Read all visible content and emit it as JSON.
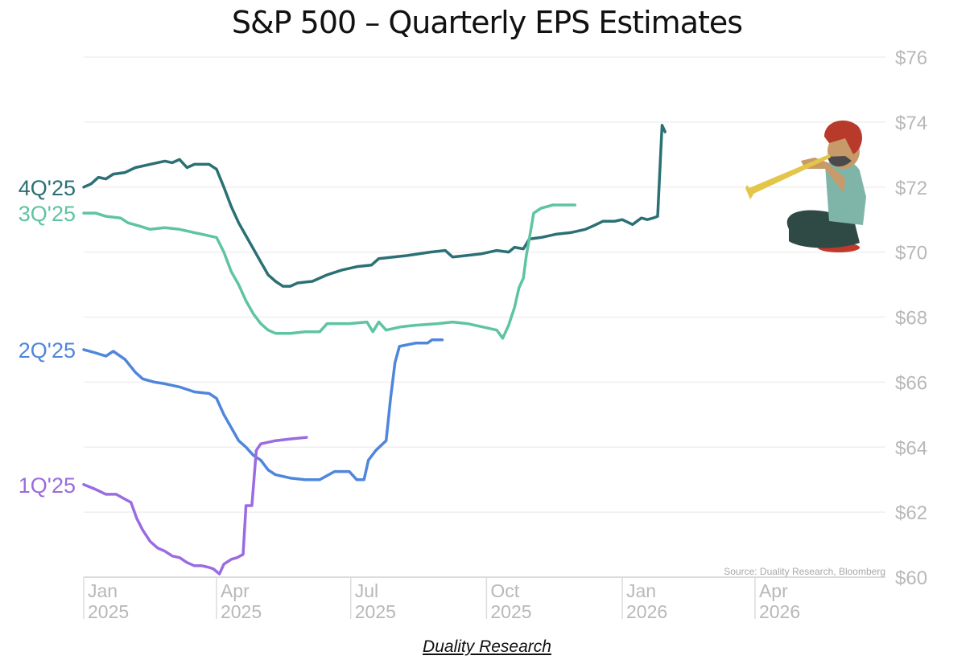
{
  "title": "S&P 500 – Quarterly EPS Estimates",
  "footer": "Duality Research",
  "source": "Source: Duality Research, Bloomberg",
  "chart_data": {
    "type": "line",
    "title": "S&P 500 – Quarterly EPS Estimates",
    "xlabel": "",
    "ylabel": "",
    "x_unit": "days since Jan 1 2025",
    "xlim": [
      0,
      455
    ],
    "ylim": [
      60,
      76
    ],
    "y_ticks": [
      60,
      62,
      64,
      66,
      68,
      70,
      72,
      74,
      76
    ],
    "y_tick_labels": [
      "$60",
      "$62",
      "$64",
      "$66",
      "$68",
      "$70",
      "$72",
      "$74",
      "$76"
    ],
    "x_ticks": [
      {
        "day": 0,
        "month": "Jan",
        "year": "2025"
      },
      {
        "day": 90,
        "month": "Apr",
        "year": "2025"
      },
      {
        "day": 181,
        "month": "Jul",
        "year": "2025"
      },
      {
        "day": 273,
        "month": "Oct",
        "year": "2025"
      },
      {
        "day": 365,
        "month": "Jan",
        "year": "2026"
      },
      {
        "day": 455,
        "month": "Apr",
        "year": "2026"
      }
    ],
    "grid": true,
    "y_axis_side": "right",
    "legend": "inline-left",
    "series": [
      {
        "name": "4Q'25",
        "color": "#2a7074",
        "points": [
          [
            0,
            72.0
          ],
          [
            5,
            72.1
          ],
          [
            10,
            72.3
          ],
          [
            15,
            72.25
          ],
          [
            20,
            72.4
          ],
          [
            28,
            72.45
          ],
          [
            35,
            72.6
          ],
          [
            45,
            72.7
          ],
          [
            55,
            72.8
          ],
          [
            60,
            72.75
          ],
          [
            65,
            72.85
          ],
          [
            70,
            72.6
          ],
          [
            75,
            72.7
          ],
          [
            85,
            72.7
          ],
          [
            90,
            72.55
          ],
          [
            95,
            72.0
          ],
          [
            100,
            71.4
          ],
          [
            105,
            70.9
          ],
          [
            110,
            70.5
          ],
          [
            115,
            70.1
          ],
          [
            120,
            69.7
          ],
          [
            125,
            69.3
          ],
          [
            130,
            69.1
          ],
          [
            135,
            68.95
          ],
          [
            140,
            68.95
          ],
          [
            145,
            69.05
          ],
          [
            155,
            69.1
          ],
          [
            165,
            69.3
          ],
          [
            175,
            69.45
          ],
          [
            185,
            69.55
          ],
          [
            195,
            69.6
          ],
          [
            200,
            69.8
          ],
          [
            210,
            69.85
          ],
          [
            220,
            69.9
          ],
          [
            235,
            70.0
          ],
          [
            245,
            70.05
          ],
          [
            250,
            69.85
          ],
          [
            260,
            69.9
          ],
          [
            270,
            69.95
          ],
          [
            280,
            70.05
          ],
          [
            288,
            70.0
          ],
          [
            292,
            70.15
          ],
          [
            298,
            70.1
          ],
          [
            302,
            70.4
          ],
          [
            310,
            70.45
          ],
          [
            320,
            70.55
          ],
          [
            330,
            70.6
          ],
          [
            340,
            70.7
          ],
          [
            345,
            70.8
          ],
          [
            352,
            70.95
          ],
          [
            360,
            70.95
          ],
          [
            365,
            71.0
          ],
          [
            372,
            70.85
          ],
          [
            378,
            71.05
          ],
          [
            382,
            71.0
          ],
          [
            386,
            71.05
          ],
          [
            389,
            71.1
          ],
          [
            391,
            73.0
          ],
          [
            392,
            73.9
          ],
          [
            394,
            73.7
          ]
        ]
      },
      {
        "name": "3Q'25",
        "color": "#5ec4a2",
        "points": [
          [
            0,
            71.2
          ],
          [
            8,
            71.2
          ],
          [
            15,
            71.1
          ],
          [
            25,
            71.05
          ],
          [
            30,
            70.9
          ],
          [
            38,
            70.8
          ],
          [
            45,
            70.7
          ],
          [
            55,
            70.75
          ],
          [
            65,
            70.7
          ],
          [
            75,
            70.6
          ],
          [
            85,
            70.5
          ],
          [
            90,
            70.45
          ],
          [
            95,
            70.0
          ],
          [
            100,
            69.4
          ],
          [
            105,
            69.0
          ],
          [
            110,
            68.5
          ],
          [
            115,
            68.1
          ],
          [
            120,
            67.8
          ],
          [
            125,
            67.6
          ],
          [
            130,
            67.5
          ],
          [
            140,
            67.5
          ],
          [
            150,
            67.55
          ],
          [
            160,
            67.55
          ],
          [
            165,
            67.8
          ],
          [
            180,
            67.8
          ],
          [
            192,
            67.85
          ],
          [
            196,
            67.55
          ],
          [
            200,
            67.85
          ],
          [
            205,
            67.6
          ],
          [
            215,
            67.7
          ],
          [
            225,
            67.75
          ],
          [
            240,
            67.8
          ],
          [
            250,
            67.85
          ],
          [
            260,
            67.8
          ],
          [
            270,
            67.7
          ],
          [
            280,
            67.6
          ],
          [
            284,
            67.35
          ],
          [
            288,
            67.75
          ],
          [
            292,
            68.3
          ],
          [
            295,
            68.9
          ],
          [
            298,
            69.2
          ],
          [
            300,
            69.9
          ],
          [
            302,
            70.4
          ],
          [
            305,
            71.2
          ],
          [
            310,
            71.35
          ],
          [
            318,
            71.45
          ],
          [
            333,
            71.45
          ]
        ]
      },
      {
        "name": "2Q'25",
        "color": "#4f86dc",
        "points": [
          [
            0,
            67.0
          ],
          [
            8,
            66.9
          ],
          [
            15,
            66.8
          ],
          [
            20,
            66.95
          ],
          [
            28,
            66.7
          ],
          [
            35,
            66.3
          ],
          [
            40,
            66.1
          ],
          [
            48,
            66.0
          ],
          [
            55,
            65.95
          ],
          [
            65,
            65.85
          ],
          [
            75,
            65.7
          ],
          [
            85,
            65.65
          ],
          [
            90,
            65.5
          ],
          [
            95,
            65.0
          ],
          [
            100,
            64.6
          ],
          [
            105,
            64.2
          ],
          [
            110,
            64.0
          ],
          [
            115,
            63.75
          ],
          [
            120,
            63.6
          ],
          [
            125,
            63.3
          ],
          [
            130,
            63.15
          ],
          [
            140,
            63.05
          ],
          [
            150,
            63.0
          ],
          [
            160,
            63.0
          ],
          [
            170,
            63.25
          ],
          [
            180,
            63.25
          ],
          [
            185,
            63.0
          ],
          [
            190,
            63.0
          ],
          [
            193,
            63.6
          ],
          [
            198,
            63.9
          ],
          [
            205,
            64.2
          ],
          [
            208,
            65.5
          ],
          [
            211,
            66.6
          ],
          [
            214,
            67.1
          ],
          [
            225,
            67.2
          ],
          [
            233,
            67.2
          ],
          [
            236,
            67.3
          ],
          [
            243,
            67.3
          ]
        ]
      },
      {
        "name": "1Q'25",
        "color": "#9b6be0",
        "points": [
          [
            0,
            62.85
          ],
          [
            8,
            62.7
          ],
          [
            15,
            62.55
          ],
          [
            22,
            62.55
          ],
          [
            28,
            62.4
          ],
          [
            32,
            62.3
          ],
          [
            36,
            61.8
          ],
          [
            40,
            61.45
          ],
          [
            45,
            61.1
          ],
          [
            50,
            60.9
          ],
          [
            55,
            60.8
          ],
          [
            60,
            60.65
          ],
          [
            65,
            60.6
          ],
          [
            70,
            60.45
          ],
          [
            75,
            60.35
          ],
          [
            80,
            60.35
          ],
          [
            85,
            60.3
          ],
          [
            88,
            60.25
          ],
          [
            92,
            60.1
          ],
          [
            95,
            60.4
          ],
          [
            100,
            60.55
          ],
          [
            104,
            60.6
          ],
          [
            108,
            60.7
          ],
          [
            110,
            62.2
          ],
          [
            114,
            62.2
          ],
          [
            117,
            63.9
          ],
          [
            120,
            64.1
          ],
          [
            130,
            64.2
          ],
          [
            140,
            64.25
          ],
          [
            151,
            64.3
          ]
        ]
      }
    ]
  }
}
